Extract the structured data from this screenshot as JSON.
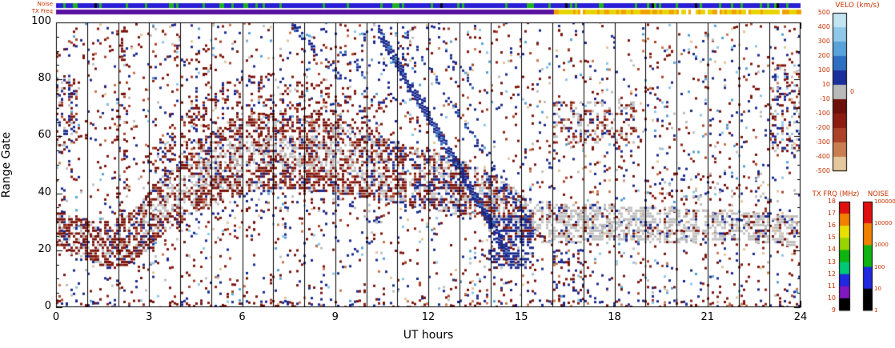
{
  "strips": {
    "noise_label": "Noise",
    "txfreq_label": "TX Freq",
    "noise_base_color": "#2a1fd4",
    "noise_mark_color": "#1fb41f",
    "noise_gap_color": "#000000",
    "txfreq_low_color": "#5a10a0",
    "txfreq_high_colors": [
      "#e8d400",
      "#f0a000"
    ],
    "txfreq_transition_hour": 16.05
  },
  "axes": {
    "xlabel": "UT hours",
    "ylabel": "Range Gate",
    "x_ticks": [
      "0",
      "3",
      "6",
      "9",
      "12",
      "15",
      "18",
      "21",
      "24"
    ],
    "y_ticks": [
      "0",
      "20",
      "40",
      "60",
      "80",
      "100"
    ]
  },
  "colorbars": {
    "velocity": {
      "title": "VELO (km/s)",
      "labels": [
        "500",
        "400",
        "300",
        "200",
        "100",
        "10",
        "-10",
        "-100",
        "-200",
        "-300",
        "-400",
        "-500"
      ],
      "zero_label": "0",
      "segment_colors": [
        "#c2e4f3",
        "#8fc8e9",
        "#58a3da",
        "#2f6fc2",
        "#1b2f9c",
        "#b9b9b9",
        "#6e100a",
        "#8c1c10",
        "#ab4228",
        "#c97e52",
        "#e6c89e"
      ]
    },
    "tx_freq": {
      "title": "TX FRQ (MHz)",
      "labels": [
        "18",
        "17",
        "16",
        "15",
        "14",
        "13",
        "12",
        "11",
        "10",
        "9"
      ],
      "segment_colors": [
        "#e01010",
        "#f08000",
        "#e8e000",
        "#98d400",
        "#10b410",
        "#00c878",
        "#2028e0",
        "#8018c0",
        "#000000"
      ]
    },
    "noise": {
      "title": "NOISE",
      "labels": [
        "100000",
        "10000",
        "1000",
        "100",
        "10",
        "1"
      ],
      "segment_colors": [
        "#e01010",
        "#f08000",
        "#10b410",
        "#2028e0",
        "#000000"
      ]
    }
  },
  "chart_data": {
    "type": "heatmap",
    "description": "HF radar range-time-velocity plot: each 3px cell is a Doppler velocity sample; blue = positive velocity (toward radar), red = negative (away), grey = ground scatter",
    "xlabel": "UT hours",
    "ylabel": "Range Gate",
    "xlim": [
      0,
      24
    ],
    "ylim": [
      0,
      100
    ],
    "x_major_ticks": [
      0,
      3,
      6,
      9,
      12,
      15,
      18,
      21,
      24
    ],
    "y_major_ticks": [
      0,
      20,
      40,
      60,
      80,
      100
    ],
    "y_minor_step": 5,
    "hour_gridlines": true,
    "velocity_range_km_s": [
      -500,
      500
    ],
    "seed": 1337421,
    "palette": {
      "navy": "#1b2a8f",
      "blue": "#2f6cc0",
      "sky": "#55a0d8",
      "lightblue": "#8cc6e8",
      "darkred": "#7a140c",
      "red": "#8c1c10",
      "brick": "#aa4028",
      "orange": "#c87850",
      "tan": "#e4c49c",
      "grey": "#c0c0c0"
    },
    "speckle": {
      "per_column_min": 5,
      "per_column_max": 13,
      "weights": {
        "navy": 0.3,
        "darkred": 0.3,
        "red": 0.07,
        "grey": 0.06,
        "sky": 0.06,
        "lightblue": 0.05,
        "brick": 0.06,
        "orange": 0.05,
        "tan": 0.05
      }
    },
    "band": {
      "points": [
        [
          0,
          28,
          6
        ],
        [
          1,
          24,
          7
        ],
        [
          1.8,
          22,
          8
        ],
        [
          2.6,
          26,
          9
        ],
        [
          3.5,
          37,
          10
        ],
        [
          4.5,
          46,
          12
        ],
        [
          5.5,
          52,
          13
        ],
        [
          6.5,
          55,
          13
        ],
        [
          7.5,
          55,
          13
        ],
        [
          8.5,
          54,
          13
        ],
        [
          9.5,
          52,
          12
        ],
        [
          10.5,
          49,
          11
        ],
        [
          11.5,
          46,
          10
        ],
        [
          12.5,
          44,
          10
        ],
        [
          13.5,
          41,
          9
        ],
        [
          14.5,
          36,
          8
        ],
        [
          15.3,
          31,
          7
        ],
        [
          16,
          30,
          7
        ],
        [
          18,
          30,
          6
        ],
        [
          20,
          29,
          6
        ],
        [
          22,
          29,
          5
        ],
        [
          24,
          27,
          5
        ]
      ],
      "gap_probability": 0.04,
      "mixes": {
        "early": {
          "darkred": 0.55,
          "red": 0.1,
          "grey": 0.2,
          "navy": 0.1,
          "brick": 0.05
        },
        "mid_inner": {
          "grey": 0.6,
          "darkred": 0.28,
          "navy": 0.07,
          "brick": 0.05
        },
        "mid_outer": {
          "darkred": 0.55,
          "grey": 0.2,
          "navy": 0.12,
          "brick": 0.13
        },
        "late_mid": {
          "darkred": 0.35,
          "grey": 0.33,
          "navy": 0.22,
          "brick": 0.1
        },
        "late": {
          "grey": 0.72,
          "darkred": 0.12,
          "navy": 0.1,
          "tan": 0.06
        }
      },
      "fringe_above": {
        "t0": 2.8,
        "t1": 10.5,
        "extent": 14,
        "p": 0.2,
        "mix": {
          "darkred": 0.65,
          "navy": 0.15,
          "brick": 0.1,
          "grey": 0.1
        }
      },
      "fringe_below": {
        "t0": 2.8,
        "t1": 10.5,
        "extent": 8,
        "p": 0.12,
        "mix": {
          "darkred": 0.5,
          "navy": 0.3,
          "grey": 0.2
        }
      }
    },
    "zones": [
      {
        "t0": 0,
        "t1": 0.8,
        "g0": 55,
        "g1": 80,
        "p": 0.25,
        "mix": {
          "darkred": 0.5,
          "navy": 0.25,
          "grey": 0.15,
          "brick": 0.1
        }
      },
      {
        "t0": 1.95,
        "t1": 2.35,
        "g0": 5,
        "g1": 98,
        "p": 0.13,
        "mix": {
          "darkred": 0.7,
          "navy": 0.15,
          "brick": 0.15
        }
      },
      {
        "t0": 3.8,
        "t1": 5.2,
        "g0": 70,
        "g1": 92,
        "p": 0.1,
        "mix": {
          "darkred": 0.6,
          "navy": 0.2,
          "brick": 0.2
        }
      },
      {
        "t0": 9.8,
        "t1": 11.5,
        "g0": 70,
        "g1": 96,
        "p": 0.08,
        "mix": {
          "navy": 0.7,
          "sky": 0.15,
          "lightblue": 0.15
        }
      },
      {
        "t0": 13.9,
        "t1": 15.4,
        "g0": 14,
        "g1": 32,
        "p": 0.5,
        "mix": {
          "navy": 0.8,
          "grey": 0.1,
          "darkred": 0.1
        }
      },
      {
        "t0": 16,
        "t1": 18.7,
        "g0": 58,
        "g1": 72,
        "p": 0.3,
        "mix": {
          "grey": 0.45,
          "darkred": 0.35,
          "navy": 0.1,
          "brick": 0.1
        }
      },
      {
        "t0": 16,
        "t1": 17.2,
        "g0": 3,
        "g1": 20,
        "p": 0.15,
        "mix": {
          "navy": 0.5,
          "darkred": 0.4,
          "orange": 0.1
        }
      },
      {
        "t0": 19.5,
        "t1": 23,
        "g0": 38,
        "g1": 48,
        "p": 0.12,
        "mix": {
          "grey": 0.4,
          "darkred": 0.4,
          "navy": 0.2
        }
      },
      {
        "t0": 23,
        "t1": 24,
        "g0": 55,
        "g1": 85,
        "p": 0.3,
        "mix": {
          "darkred": 0.35,
          "navy": 0.25,
          "grey": 0.2,
          "lightblue": 0.1,
          "brick": 0.1
        }
      }
    ],
    "streaks": [
      {
        "t0": 10.35,
        "g0": 98,
        "t1": 14.65,
        "g1": 18,
        "hw": 1.6,
        "p": 0.85
      },
      {
        "t0": 11.15,
        "g0": 99,
        "t1": 15.35,
        "g1": 28,
        "hw": 1,
        "p": 0.3
      },
      {
        "t0": 7.55,
        "g0": 100,
        "t1": 9.3,
        "g1": 79,
        "hw": 0.9,
        "p": 0.4
      },
      {
        "t0": 8.35,
        "g0": 100,
        "t1": 10.1,
        "g1": 80,
        "hw": 0.8,
        "p": 0.3
      },
      {
        "t0": 12.1,
        "g0": 99,
        "t1": 13.5,
        "g1": 76,
        "hw": 0.8,
        "p": 0.25
      }
    ],
    "bottom_rows": {
      "p": 0.55,
      "max_gate": 2.5,
      "mix": {
        "darkred": 0.4,
        "navy": 0.35,
        "orange": 0.12,
        "red": 0.13
      }
    }
  }
}
